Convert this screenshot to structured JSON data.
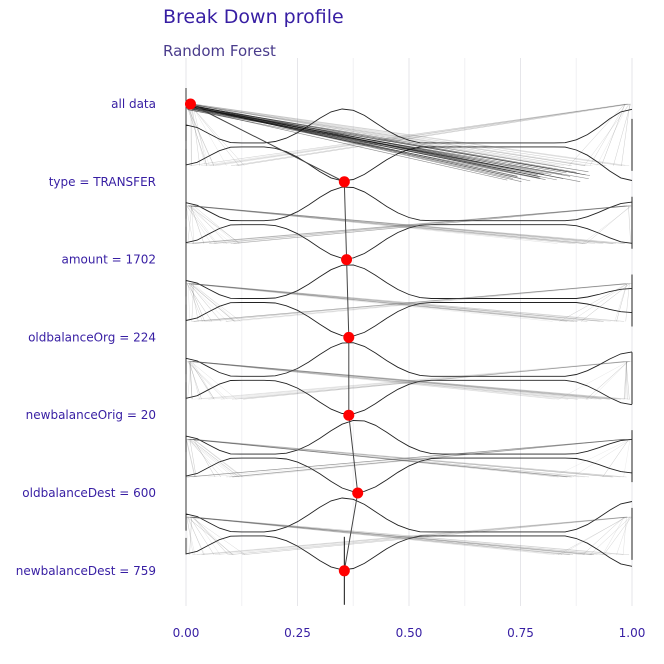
{
  "chart_data": {
    "type": "line",
    "title": "Break Down profile",
    "subtitle": "Random Forest",
    "xlabel": "",
    "ylabel": "",
    "xlim": [
      0,
      1
    ],
    "x_ticks": [
      "0.00",
      "0.25",
      "0.50",
      "0.75",
      "1.00"
    ],
    "x_tick_values": [
      0,
      0.25,
      0.5,
      0.75,
      1.0
    ],
    "categories": [
      "all data",
      "type = TRANSFER",
      "amount = 1702",
      "oldbalanceOrg = 224",
      "newbalanceOrig = 20",
      "oldbalanceDest = 600",
      "newbalanceDest = 759"
    ],
    "series": [
      {
        "values": [
          0.01,
          0.355,
          0.36,
          0.365,
          0.365,
          0.385,
          0.355
        ]
      }
    ],
    "point_color": "#ff0000",
    "text_color": "#371ea3",
    "grid": true
  }
}
